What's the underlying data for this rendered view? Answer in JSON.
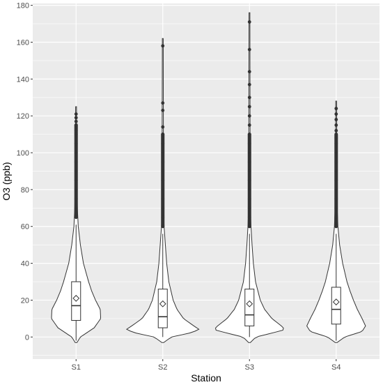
{
  "chart_data": {
    "type": "violin",
    "xlabel": "Station",
    "ylabel": "O3 (ppb)",
    "categories": [
      "S1",
      "S2",
      "S3",
      "S4"
    ],
    "ylim": [
      -12,
      181
    ],
    "yticks": [
      0,
      20,
      40,
      60,
      80,
      100,
      120,
      140,
      160,
      180
    ],
    "grid": true,
    "legend": "none",
    "series": [
      {
        "category": "S1",
        "q1": 9,
        "median": 17,
        "q3": 30,
        "mean": 21,
        "whisker_low": -2,
        "whisker_high": 61,
        "outliers": [
          65,
          70,
          75,
          80,
          85,
          90,
          95,
          100,
          105,
          110,
          112,
          115,
          117,
          119,
          121
        ],
        "max": 125,
        "density": [
          [
            -3,
            0.02
          ],
          [
            0,
            0.1
          ],
          [
            5,
            0.42
          ],
          [
            10,
            0.57
          ],
          [
            15,
            0.56
          ],
          [
            20,
            0.45
          ],
          [
            25,
            0.36
          ],
          [
            30,
            0.29
          ],
          [
            40,
            0.17
          ],
          [
            50,
            0.1
          ],
          [
            60,
            0.05
          ],
          [
            70,
            0.03
          ],
          [
            100,
            0.015
          ],
          [
            125,
            0.01
          ]
        ]
      },
      {
        "category": "S2",
        "q1": 5,
        "median": 11,
        "q3": 26,
        "mean": 18,
        "whisker_low": 0,
        "whisker_high": 56,
        "outliers": [
          60,
          65,
          70,
          75,
          80,
          85,
          90,
          95,
          100,
          105,
          110,
          114,
          123,
          127,
          158
        ],
        "max": 162,
        "density": [
          [
            -3,
            0.02
          ],
          [
            0,
            0.2
          ],
          [
            2,
            0.6
          ],
          [
            4,
            0.85
          ],
          [
            6,
            0.72
          ],
          [
            10,
            0.48
          ],
          [
            15,
            0.33
          ],
          [
            20,
            0.24
          ],
          [
            30,
            0.14
          ],
          [
            40,
            0.09
          ],
          [
            50,
            0.06
          ],
          [
            60,
            0.03
          ],
          [
            70,
            0.02
          ],
          [
            100,
            0.015
          ],
          [
            162,
            0.01
          ]
        ]
      },
      {
        "category": "S3",
        "q1": 6,
        "median": 12,
        "q3": 26,
        "mean": 18,
        "whisker_low": 0,
        "whisker_high": 56,
        "outliers": [
          60,
          65,
          70,
          75,
          80,
          85,
          90,
          95,
          100,
          105,
          110,
          115,
          120,
          125,
          130,
          137,
          144,
          156,
          171
        ],
        "max": 176,
        "density": [
          [
            -3,
            0.02
          ],
          [
            0,
            0.15
          ],
          [
            2,
            0.5
          ],
          [
            4,
            0.82
          ],
          [
            6,
            0.74
          ],
          [
            10,
            0.52
          ],
          [
            15,
            0.35
          ],
          [
            20,
            0.25
          ],
          [
            30,
            0.14
          ],
          [
            40,
            0.09
          ],
          [
            50,
            0.06
          ],
          [
            60,
            0.035
          ],
          [
            70,
            0.02
          ],
          [
            100,
            0.015
          ],
          [
            176,
            0.01
          ]
        ]
      },
      {
        "category": "S4",
        "q1": 7,
        "median": 15,
        "q3": 27,
        "mean": 19,
        "whisker_low": -2,
        "whisker_high": 56,
        "outliers": [
          60,
          65,
          70,
          75,
          80,
          85,
          90,
          95,
          100,
          105,
          108,
          112,
          115,
          118,
          121,
          124
        ],
        "max": 128,
        "density": [
          [
            -3,
            0.02
          ],
          [
            0,
            0.2
          ],
          [
            3,
            0.6
          ],
          [
            6,
            0.68
          ],
          [
            10,
            0.6
          ],
          [
            15,
            0.49
          ],
          [
            20,
            0.4
          ],
          [
            25,
            0.32
          ],
          [
            30,
            0.25
          ],
          [
            40,
            0.15
          ],
          [
            50,
            0.08
          ],
          [
            60,
            0.04
          ],
          [
            70,
            0.025
          ],
          [
            100,
            0.015
          ],
          [
            128,
            0.01
          ]
        ]
      }
    ],
    "colors": {
      "panel_background": "#ebebeb",
      "gridline": "#ffffff",
      "violin_fill": "#ffffff",
      "outline": "#333333",
      "point": "#333333"
    }
  }
}
